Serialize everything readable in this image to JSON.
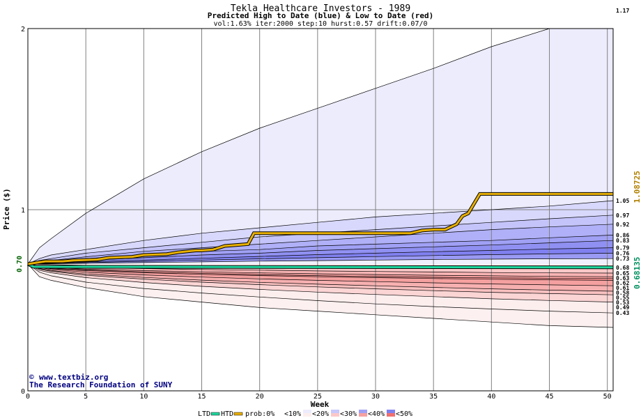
{
  "chart_data": {
    "type": "line",
    "title": "Tekla Healthcare Investors - 1989",
    "subtitle": "Predicted High to Date (blue) &  Low to Date (red)",
    "params": "vol:1.63% iter:2000 step:10 hurst:0.57 drift:0.07/0",
    "xlabel": "Week",
    "ylabel": "Price ($)",
    "xlim": [
      0,
      50.5
    ],
    "ylim": [
      0,
      2
    ],
    "x_ticks": [
      0,
      5,
      10,
      15,
      20,
      25,
      30,
      35,
      40,
      45,
      50
    ],
    "y_ticks": [
      0,
      1,
      2
    ],
    "grid": true,
    "start_price": 0.7,
    "start_price_label": "0.70",
    "htd_value": 1.08725,
    "htd_label": "1.08725",
    "ltd_value": 0.68135,
    "ltd_label": "0.68135",
    "weeks": [
      0,
      1,
      2,
      5,
      10,
      15,
      20,
      25,
      30,
      35,
      40,
      45,
      50.5
    ],
    "high_percentiles": [
      {
        "label": "1.17",
        "values": [
          0.7,
          0.79,
          0.84,
          0.98,
          1.17,
          1.32,
          1.45,
          1.56,
          1.67,
          1.78,
          1.9,
          2.0,
          2.1
        ]
      },
      {
        "label": "1.05",
        "values": [
          0.7,
          0.73,
          0.75,
          0.78,
          0.83,
          0.87,
          0.9,
          0.93,
          0.96,
          0.98,
          1.0,
          1.02,
          1.05
        ]
      },
      {
        "label": "0.97",
        "values": [
          0.7,
          0.72,
          0.73,
          0.76,
          0.79,
          0.82,
          0.85,
          0.87,
          0.89,
          0.91,
          0.93,
          0.95,
          0.97
        ]
      },
      {
        "label": "0.92",
        "values": [
          0.7,
          0.71,
          0.72,
          0.74,
          0.77,
          0.79,
          0.81,
          0.83,
          0.85,
          0.87,
          0.89,
          0.905,
          0.92
        ]
      },
      {
        "label": "0.86",
        "values": [
          0.7,
          0.705,
          0.71,
          0.73,
          0.75,
          0.77,
          0.78,
          0.8,
          0.81,
          0.82,
          0.83,
          0.845,
          0.86
        ]
      },
      {
        "label": "0.83",
        "values": [
          0.7,
          0.703,
          0.706,
          0.72,
          0.735,
          0.75,
          0.76,
          0.775,
          0.785,
          0.795,
          0.805,
          0.817,
          0.83
        ]
      },
      {
        "label": "0.79",
        "values": [
          0.7,
          0.702,
          0.704,
          0.712,
          0.722,
          0.732,
          0.742,
          0.752,
          0.76,
          0.768,
          0.775,
          0.783,
          0.79
        ]
      },
      {
        "label": "0.76",
        "values": [
          0.7,
          0.701,
          0.703,
          0.708,
          0.715,
          0.722,
          0.729,
          0.735,
          0.741,
          0.747,
          0.752,
          0.756,
          0.76
        ]
      },
      {
        "label": "0.73",
        "values": [
          0.7,
          0.7,
          0.701,
          0.704,
          0.708,
          0.712,
          0.716,
          0.719,
          0.722,
          0.725,
          0.727,
          0.729,
          0.73
        ]
      }
    ],
    "low_percentiles": [
      {
        "label": "0.68",
        "values": [
          0.7,
          0.699,
          0.697,
          0.693,
          0.69,
          0.688,
          0.686,
          0.685,
          0.684,
          0.683,
          0.682,
          0.681,
          0.68
        ]
      },
      {
        "label": "0.65",
        "values": [
          0.7,
          0.69,
          0.685,
          0.68,
          0.675,
          0.67,
          0.666,
          0.662,
          0.659,
          0.656,
          0.653,
          0.651,
          0.65
        ]
      },
      {
        "label": "0.63",
        "values": [
          0.7,
          0.685,
          0.68,
          0.672,
          0.664,
          0.657,
          0.651,
          0.646,
          0.642,
          0.638,
          0.635,
          0.632,
          0.63
        ]
      },
      {
        "label": "0.62",
        "values": [
          0.7,
          0.683,
          0.676,
          0.667,
          0.657,
          0.649,
          0.642,
          0.636,
          0.631,
          0.627,
          0.624,
          0.622,
          0.62
        ]
      },
      {
        "label": "0.61",
        "values": [
          0.7,
          0.682,
          0.674,
          0.664,
          0.652,
          0.643,
          0.636,
          0.63,
          0.625,
          0.62,
          0.616,
          0.613,
          0.61
        ]
      },
      {
        "label": "0.58",
        "values": [
          0.7,
          0.68,
          0.67,
          0.655,
          0.64,
          0.628,
          0.618,
          0.61,
          0.603,
          0.596,
          0.59,
          0.585,
          0.58
        ]
      },
      {
        "label": "0.55",
        "values": [
          0.7,
          0.675,
          0.664,
          0.645,
          0.626,
          0.611,
          0.599,
          0.589,
          0.58,
          0.571,
          0.563,
          0.556,
          0.55
        ]
      },
      {
        "label": "0.53",
        "values": [
          0.7,
          0.672,
          0.66,
          0.638,
          0.617,
          0.6,
          0.586,
          0.574,
          0.563,
          0.553,
          0.544,
          0.537,
          0.53
        ]
      },
      {
        "label": "0.49",
        "values": [
          0.7,
          0.665,
          0.652,
          0.625,
          0.598,
          0.577,
          0.56,
          0.545,
          0.532,
          0.52,
          0.508,
          0.499,
          0.49
        ]
      },
      {
        "label": "0.43",
        "values": [
          0.7,
          0.655,
          0.635,
          0.6,
          0.565,
          0.54,
          0.518,
          0.498,
          0.48,
          0.465,
          0.452,
          0.44,
          0.43
        ]
      }
    ],
    "outer_low": {
      "values": [
        0.7,
        0.63,
        0.61,
        0.57,
        0.52,
        0.49,
        0.46,
        0.44,
        0.42,
        0.4,
        0.38,
        0.36,
        0.35
      ]
    },
    "htd_path": {
      "x": [
        0,
        1,
        1.5,
        3,
        4,
        6,
        7,
        9,
        10,
        12,
        13,
        14.5,
        15,
        16,
        17,
        19,
        19.5,
        21,
        22,
        26,
        33,
        34,
        35,
        36,
        37,
        37.5,
        38,
        39,
        40,
        45,
        50.5
      ],
      "y": [
        0.7,
        0.71,
        0.715,
        0.715,
        0.72,
        0.725,
        0.735,
        0.74,
        0.75,
        0.755,
        0.765,
        0.775,
        0.775,
        0.78,
        0.8,
        0.81,
        0.87,
        0.87,
        0.87,
        0.87,
        0.87,
        0.885,
        0.89,
        0.89,
        0.92,
        0.965,
        0.98,
        1.087,
        1.087,
        1.087,
        1.087
      ]
    },
    "ltd_path": {
      "x": [
        0,
        0.5,
        50.5
      ],
      "y": [
        0.7,
        0.685,
        0.68135
      ]
    },
    "legend": {
      "ltd": "LTD",
      "htd": "HTD",
      "prob_prefix": "prob:0%",
      "items": [
        {
          "label": "<10%",
          "high_color": "#ffffff",
          "low_color": "#ffffff"
        },
        {
          "label": "<20%",
          "high_color": "#ececfd",
          "low_color": "#fdeeee"
        },
        {
          "label": "<30%",
          "high_color": "#c8c8fa",
          "low_color": "#fbc8c8"
        },
        {
          "label": "<40%",
          "high_color": "#a0a0f5",
          "low_color": "#f5a0a0"
        },
        {
          "label": "<50%",
          "high_color": "#8080f0",
          "low_color": "#f07070"
        }
      ]
    },
    "colors": {
      "htd_line": "#e8b000",
      "ltd_line": "#20d8a0",
      "htd_label": "#b08000",
      "ltd_label": "#009060",
      "start_label": "#006000",
      "grid": "#808080",
      "watermark": "#000080"
    }
  },
  "watermark": {
    "copyright_symbol": "©",
    "site": "www.textbiz.org",
    "org": "The Research Foundation of SUNY"
  }
}
